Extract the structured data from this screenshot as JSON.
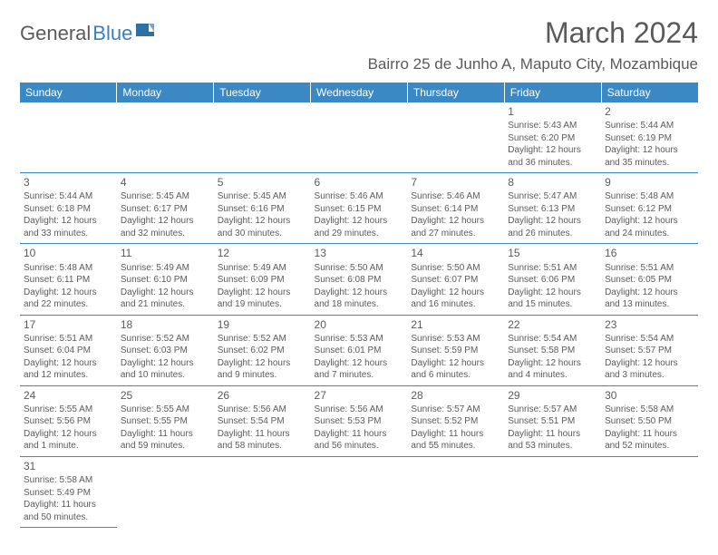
{
  "logo": {
    "text1": "General",
    "text2": "Blue"
  },
  "title": "March 2024",
  "location": "Bairro 25 de Junho A, Maputo City, Mozambique",
  "header_bg": "#3a88c4",
  "day_headers": [
    "Sunday",
    "Monday",
    "Tuesday",
    "Wednesday",
    "Thursday",
    "Friday",
    "Saturday"
  ],
  "weeks": [
    [
      null,
      null,
      null,
      null,
      null,
      {
        "n": "1",
        "sr": "Sunrise: 5:43 AM",
        "ss": "Sunset: 6:20 PM",
        "d1": "Daylight: 12 hours",
        "d2": "and 36 minutes."
      },
      {
        "n": "2",
        "sr": "Sunrise: 5:44 AM",
        "ss": "Sunset: 6:19 PM",
        "d1": "Daylight: 12 hours",
        "d2": "and 35 minutes."
      }
    ],
    [
      {
        "n": "3",
        "sr": "Sunrise: 5:44 AM",
        "ss": "Sunset: 6:18 PM",
        "d1": "Daylight: 12 hours",
        "d2": "and 33 minutes."
      },
      {
        "n": "4",
        "sr": "Sunrise: 5:45 AM",
        "ss": "Sunset: 6:17 PM",
        "d1": "Daylight: 12 hours",
        "d2": "and 32 minutes."
      },
      {
        "n": "5",
        "sr": "Sunrise: 5:45 AM",
        "ss": "Sunset: 6:16 PM",
        "d1": "Daylight: 12 hours",
        "d2": "and 30 minutes."
      },
      {
        "n": "6",
        "sr": "Sunrise: 5:46 AM",
        "ss": "Sunset: 6:15 PM",
        "d1": "Daylight: 12 hours",
        "d2": "and 29 minutes."
      },
      {
        "n": "7",
        "sr": "Sunrise: 5:46 AM",
        "ss": "Sunset: 6:14 PM",
        "d1": "Daylight: 12 hours",
        "d2": "and 27 minutes."
      },
      {
        "n": "8",
        "sr": "Sunrise: 5:47 AM",
        "ss": "Sunset: 6:13 PM",
        "d1": "Daylight: 12 hours",
        "d2": "and 26 minutes."
      },
      {
        "n": "9",
        "sr": "Sunrise: 5:48 AM",
        "ss": "Sunset: 6:12 PM",
        "d1": "Daylight: 12 hours",
        "d2": "and 24 minutes."
      }
    ],
    [
      {
        "n": "10",
        "sr": "Sunrise: 5:48 AM",
        "ss": "Sunset: 6:11 PM",
        "d1": "Daylight: 12 hours",
        "d2": "and 22 minutes."
      },
      {
        "n": "11",
        "sr": "Sunrise: 5:49 AM",
        "ss": "Sunset: 6:10 PM",
        "d1": "Daylight: 12 hours",
        "d2": "and 21 minutes."
      },
      {
        "n": "12",
        "sr": "Sunrise: 5:49 AM",
        "ss": "Sunset: 6:09 PM",
        "d1": "Daylight: 12 hours",
        "d2": "and 19 minutes."
      },
      {
        "n": "13",
        "sr": "Sunrise: 5:50 AM",
        "ss": "Sunset: 6:08 PM",
        "d1": "Daylight: 12 hours",
        "d2": "and 18 minutes."
      },
      {
        "n": "14",
        "sr": "Sunrise: 5:50 AM",
        "ss": "Sunset: 6:07 PM",
        "d1": "Daylight: 12 hours",
        "d2": "and 16 minutes."
      },
      {
        "n": "15",
        "sr": "Sunrise: 5:51 AM",
        "ss": "Sunset: 6:06 PM",
        "d1": "Daylight: 12 hours",
        "d2": "and 15 minutes."
      },
      {
        "n": "16",
        "sr": "Sunrise: 5:51 AM",
        "ss": "Sunset: 6:05 PM",
        "d1": "Daylight: 12 hours",
        "d2": "and 13 minutes."
      }
    ],
    [
      {
        "n": "17",
        "sr": "Sunrise: 5:51 AM",
        "ss": "Sunset: 6:04 PM",
        "d1": "Daylight: 12 hours",
        "d2": "and 12 minutes."
      },
      {
        "n": "18",
        "sr": "Sunrise: 5:52 AM",
        "ss": "Sunset: 6:03 PM",
        "d1": "Daylight: 12 hours",
        "d2": "and 10 minutes."
      },
      {
        "n": "19",
        "sr": "Sunrise: 5:52 AM",
        "ss": "Sunset: 6:02 PM",
        "d1": "Daylight: 12 hours",
        "d2": "and 9 minutes."
      },
      {
        "n": "20",
        "sr": "Sunrise: 5:53 AM",
        "ss": "Sunset: 6:01 PM",
        "d1": "Daylight: 12 hours",
        "d2": "and 7 minutes."
      },
      {
        "n": "21",
        "sr": "Sunrise: 5:53 AM",
        "ss": "Sunset: 5:59 PM",
        "d1": "Daylight: 12 hours",
        "d2": "and 6 minutes."
      },
      {
        "n": "22",
        "sr": "Sunrise: 5:54 AM",
        "ss": "Sunset: 5:58 PM",
        "d1": "Daylight: 12 hours",
        "d2": "and 4 minutes."
      },
      {
        "n": "23",
        "sr": "Sunrise: 5:54 AM",
        "ss": "Sunset: 5:57 PM",
        "d1": "Daylight: 12 hours",
        "d2": "and 3 minutes."
      }
    ],
    [
      {
        "n": "24",
        "sr": "Sunrise: 5:55 AM",
        "ss": "Sunset: 5:56 PM",
        "d1": "Daylight: 12 hours",
        "d2": "and 1 minute."
      },
      {
        "n": "25",
        "sr": "Sunrise: 5:55 AM",
        "ss": "Sunset: 5:55 PM",
        "d1": "Daylight: 11 hours",
        "d2": "and 59 minutes."
      },
      {
        "n": "26",
        "sr": "Sunrise: 5:56 AM",
        "ss": "Sunset: 5:54 PM",
        "d1": "Daylight: 11 hours",
        "d2": "and 58 minutes."
      },
      {
        "n": "27",
        "sr": "Sunrise: 5:56 AM",
        "ss": "Sunset: 5:53 PM",
        "d1": "Daylight: 11 hours",
        "d2": "and 56 minutes."
      },
      {
        "n": "28",
        "sr": "Sunrise: 5:57 AM",
        "ss": "Sunset: 5:52 PM",
        "d1": "Daylight: 11 hours",
        "d2": "and 55 minutes."
      },
      {
        "n": "29",
        "sr": "Sunrise: 5:57 AM",
        "ss": "Sunset: 5:51 PM",
        "d1": "Daylight: 11 hours",
        "d2": "and 53 minutes."
      },
      {
        "n": "30",
        "sr": "Sunrise: 5:58 AM",
        "ss": "Sunset: 5:50 PM",
        "d1": "Daylight: 11 hours",
        "d2": "and 52 minutes."
      }
    ],
    [
      {
        "n": "31",
        "sr": "Sunrise: 5:58 AM",
        "ss": "Sunset: 5:49 PM",
        "d1": "Daylight: 11 hours",
        "d2": "and 50 minutes."
      },
      null,
      null,
      null,
      null,
      null,
      null
    ]
  ]
}
